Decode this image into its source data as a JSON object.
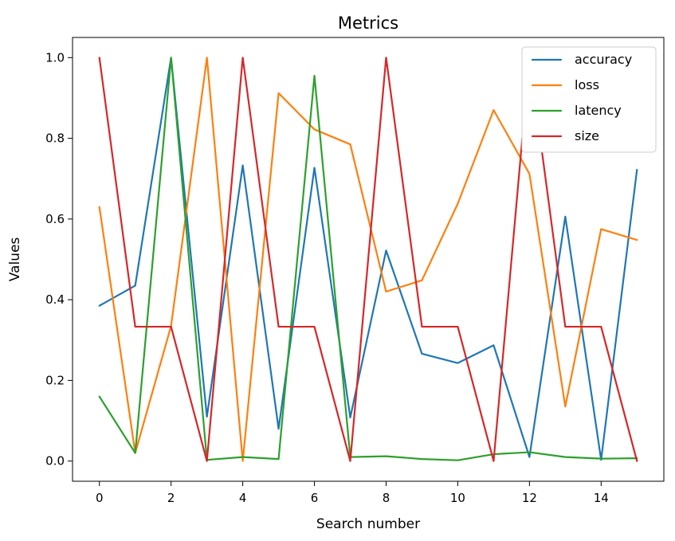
{
  "chart_data": {
    "type": "line",
    "title": "Metrics",
    "xlabel": "Search number",
    "ylabel": "Values",
    "xlim": [
      -0.75,
      15.75
    ],
    "ylim": [
      -0.05,
      1.05
    ],
    "x": [
      0,
      1,
      2,
      3,
      4,
      5,
      6,
      7,
      8,
      9,
      10,
      11,
      12,
      13,
      14,
      15
    ],
    "xticks": [
      0,
      2,
      4,
      6,
      8,
      10,
      12,
      14
    ],
    "xtick_labels": [
      "0",
      "2",
      "4",
      "6",
      "8",
      "10",
      "12",
      "14"
    ],
    "yticks": [
      0.0,
      0.2,
      0.4,
      0.6,
      0.8,
      1.0
    ],
    "ytick_labels": [
      "0.0",
      "0.2",
      "0.4",
      "0.6",
      "0.8",
      "1.0"
    ],
    "grid": false,
    "legend_position": "top-right",
    "series": [
      {
        "name": "accuracy",
        "color": "#1f77b4",
        "values": [
          0.385,
          0.435,
          1.0,
          0.11,
          0.733,
          0.08,
          0.727,
          0.108,
          0.522,
          0.266,
          0.243,
          0.287,
          0.01,
          0.606,
          0.003,
          0.722
        ]
      },
      {
        "name": "loss",
        "color": "#ff7f0e",
        "values": [
          0.63,
          0.02,
          0.335,
          1.0,
          0.0,
          0.912,
          0.822,
          0.785,
          0.42,
          0.448,
          0.638,
          0.87,
          0.712,
          0.135,
          0.575,
          0.548
        ]
      },
      {
        "name": "latency",
        "color": "#2ca02c",
        "values": [
          0.16,
          0.02,
          1.0,
          0.003,
          0.01,
          0.005,
          0.955,
          0.01,
          0.012,
          0.005,
          0.002,
          0.017,
          0.022,
          0.01,
          0.006,
          0.007
        ]
      },
      {
        "name": "size",
        "color": "#d62728",
        "values": [
          1.0,
          0.333,
          0.333,
          0.0,
          1.0,
          0.333,
          0.333,
          0.0,
          1.0,
          0.333,
          0.333,
          0.0,
          1.0,
          0.333,
          0.333,
          0.0
        ]
      }
    ]
  }
}
